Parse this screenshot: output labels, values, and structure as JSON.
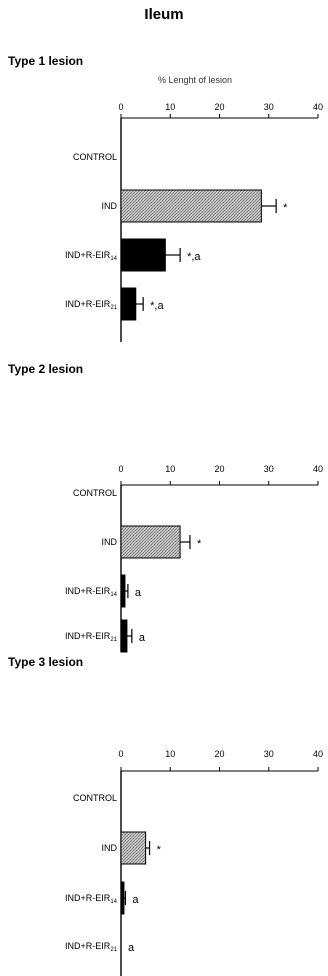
{
  "page_title": "Ileum",
  "colors": {
    "IND": "#c8c8c8",
    "IND+R-EIR14": "#000000",
    "IND+R-EIR21": "#000000"
  },
  "chart_data": [
    {
      "type": "bar",
      "orientation": "horizontal",
      "title": "Type 1 lesion",
      "xlabel": "% Lenght of lesion",
      "xlim": [
        0,
        40
      ],
      "xticks": [
        0,
        10,
        20,
        30,
        40
      ],
      "categories": [
        {
          "label": "CONTROL",
          "main": "CONTROL",
          "sub": ""
        },
        {
          "label": "IND",
          "main": "IND",
          "sub": ""
        },
        {
          "label": "IND+R-EIR14",
          "main": "IND+R-EIR",
          "sub": "14"
        },
        {
          "label": "IND+R-EIR21",
          "main": "IND+R-EIR",
          "sub": "21"
        }
      ],
      "values": [
        0,
        28.5,
        9,
        3
      ],
      "errors": [
        0,
        3,
        3,
        1.5
      ],
      "annotations": [
        "",
        "*",
        "*,a",
        "*,a"
      ]
    },
    {
      "type": "bar",
      "orientation": "horizontal",
      "title": "Type 2 lesion",
      "xlabel": "",
      "xlim": [
        0,
        40
      ],
      "xticks": [
        0,
        10,
        20,
        30,
        40
      ],
      "categories": [
        {
          "label": "CONTROL",
          "main": "CONTROL",
          "sub": ""
        },
        {
          "label": "IND",
          "main": "IND",
          "sub": ""
        },
        {
          "label": "IND+R-EIR14",
          "main": "IND+R-EIR",
          "sub": "14"
        },
        {
          "label": "IND+R-EIR21",
          "main": "IND+R-EIR",
          "sub": "21"
        }
      ],
      "values": [
        0,
        12,
        0.8,
        1.2
      ],
      "errors": [
        0,
        2,
        0.6,
        1
      ],
      "annotations": [
        "",
        "*",
        "a",
        "a"
      ]
    },
    {
      "type": "bar",
      "orientation": "horizontal",
      "title": "Type 3 lesion",
      "xlabel": "",
      "xlim": [
        0,
        40
      ],
      "xticks": [
        0,
        10,
        20,
        30,
        40
      ],
      "categories": [
        {
          "label": "CONTROL",
          "main": "CONTROL",
          "sub": ""
        },
        {
          "label": "IND",
          "main": "IND",
          "sub": ""
        },
        {
          "label": "IND+R-EIR14",
          "main": "IND+R-EIR",
          "sub": "14"
        },
        {
          "label": "IND+R-EIR21",
          "main": "IND+R-EIR",
          "sub": "21"
        }
      ],
      "values": [
        0,
        5,
        0.6,
        0
      ],
      "errors": [
        0,
        0.8,
        0.3,
        0
      ],
      "annotations": [
        "",
        "*",
        "a",
        "a"
      ]
    }
  ]
}
